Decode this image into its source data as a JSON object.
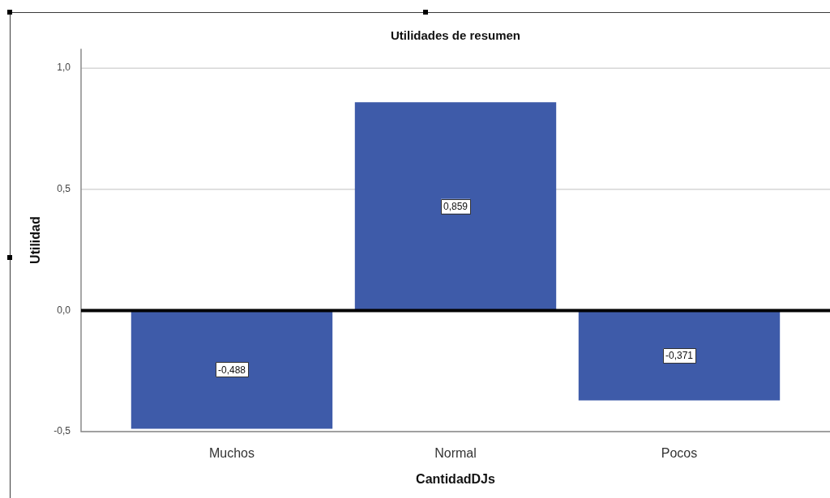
{
  "chart_data": {
    "type": "bar",
    "title": "Utilidades de resumen",
    "xlabel": "CantidadDJs",
    "ylabel": "Utilidad",
    "categories": [
      "Muchos",
      "Normal",
      "Pocos"
    ],
    "values": [
      -0.488,
      0.859,
      -0.371
    ],
    "value_labels": [
      "-0,488",
      "0,859",
      "-0,371"
    ],
    "color": "#3e5ba9",
    "ylim": [
      -0.5,
      1.08
    ],
    "yticks": [
      {
        "value": -0.5,
        "label": "-0,5"
      },
      {
        "value": 0,
        "label": "0,0"
      },
      {
        "value": 0.5,
        "label": "0,5"
      },
      {
        "value": 1,
        "label": "1,0"
      }
    ],
    "grid": "y",
    "ref_lines": [
      {
        "axis": "y",
        "value": 0,
        "color": "#000000"
      }
    ]
  }
}
